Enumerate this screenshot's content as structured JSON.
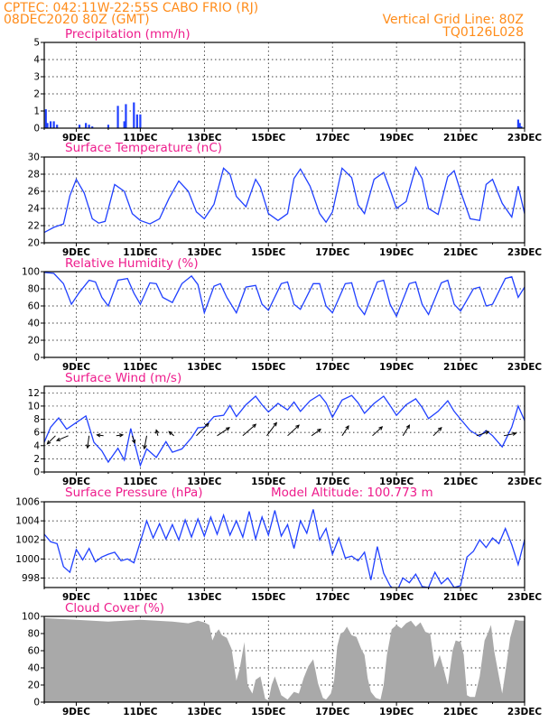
{
  "header": {
    "station": "CPTEC:   042:11W-22:55S   CABO FRIO (RJ)",
    "run": "08DEC2020 80Z (GMT)",
    "grid_note": "Vertical Grid Line: 80Z",
    "code": "TQ0126L028"
  },
  "x_axis": {
    "start_day": 8.0,
    "end_day": 23.0,
    "tick_days": [
      9,
      11,
      13,
      15,
      17,
      19,
      21,
      23
    ],
    "tick_labels": [
      "9DEC",
      "11DEC",
      "13DEC",
      "15DEC",
      "17DEC",
      "19DEC",
      "21DEC",
      "23DEC"
    ]
  },
  "colors": {
    "line": "#2040ff",
    "cloud": "#a9a9a9",
    "header": "#ff8c1a",
    "title": "#ee1c8c",
    "grid": "#000000"
  },
  "chart_data": [
    {
      "id": "precip",
      "type": "bar",
      "title": "Precipitation (mm/h)",
      "ylim": [
        0,
        5
      ],
      "yticks": [
        0,
        1,
        2,
        3,
        4,
        5
      ],
      "x_unit": "day of December 2020",
      "x": [
        8.05,
        8.1,
        8.2,
        8.3,
        8.4,
        9.1,
        9.3,
        9.4,
        9.5,
        10.0,
        10.3,
        10.5,
        10.55,
        10.8,
        10.9,
        11.0,
        22.8,
        22.85,
        22.9
      ],
      "values": [
        1.1,
        0.3,
        0.4,
        0.4,
        0.2,
        0.2,
        0.3,
        0.2,
        0.1,
        0.2,
        1.3,
        0.4,
        1.4,
        1.5,
        0.8,
        0.8,
        0.5,
        0.3,
        0.1
      ],
      "grid": true
    },
    {
      "id": "temp",
      "type": "line",
      "title": "Surface Temperature (nC)",
      "ylim": [
        20,
        30
      ],
      "yticks": [
        20,
        22,
        24,
        26,
        28,
        30
      ],
      "x": [
        8.0,
        8.3,
        8.6,
        8.8,
        9.0,
        9.25,
        9.5,
        9.7,
        9.9,
        10.2,
        10.5,
        10.75,
        11.0,
        11.3,
        11.6,
        11.9,
        12.2,
        12.5,
        12.75,
        13.0,
        13.3,
        13.6,
        13.8,
        14.0,
        14.3,
        14.6,
        14.75,
        15.0,
        15.3,
        15.6,
        15.8,
        16.0,
        16.3,
        16.6,
        16.8,
        17.0,
        17.3,
        17.6,
        17.8,
        18.0,
        18.3,
        18.6,
        18.8,
        19.0,
        19.3,
        19.6,
        19.8,
        20.0,
        20.3,
        20.6,
        20.8,
        21.0,
        21.3,
        21.6,
        21.8,
        22.0,
        22.3,
        22.6,
        22.8,
        23.0
      ],
      "values": [
        21.2,
        21.8,
        22.2,
        25.5,
        27.4,
        25.8,
        22.8,
        22.3,
        22.5,
        26.8,
        26.0,
        23.4,
        22.6,
        22.2,
        22.8,
        25.2,
        27.2,
        26.0,
        23.6,
        22.8,
        24.5,
        28.7,
        28.0,
        25.4,
        24.2,
        27.4,
        26.5,
        23.4,
        22.6,
        23.4,
        27.5,
        28.6,
        26.6,
        23.4,
        22.4,
        23.6,
        28.7,
        27.6,
        24.4,
        23.4,
        27.4,
        28.2,
        26.2,
        24.0,
        24.8,
        28.8,
        27.5,
        24.0,
        23.3,
        27.7,
        28.4,
        26.0,
        22.8,
        22.6,
        26.8,
        27.4,
        24.6,
        23.0,
        26.6,
        23.4
      ],
      "grid": true
    },
    {
      "id": "rh",
      "type": "line",
      "title": "Relative Humidity (%)",
      "ylim": [
        0,
        100
      ],
      "yticks": [
        0,
        20,
        40,
        60,
        80,
        100
      ],
      "x": [
        8.0,
        8.3,
        8.6,
        8.85,
        9.1,
        9.4,
        9.6,
        9.8,
        10.0,
        10.3,
        10.6,
        10.8,
        11.0,
        11.3,
        11.5,
        11.7,
        12.0,
        12.3,
        12.6,
        12.8,
        13.0,
        13.3,
        13.5,
        13.7,
        14.0,
        14.3,
        14.6,
        14.8,
        15.0,
        15.4,
        15.6,
        15.8,
        16.0,
        16.4,
        16.6,
        16.8,
        17.0,
        17.4,
        17.6,
        17.8,
        18.0,
        18.4,
        18.6,
        18.8,
        19.0,
        19.4,
        19.6,
        19.8,
        20.0,
        20.4,
        20.6,
        20.8,
        21.0,
        21.4,
        21.6,
        21.8,
        22.0,
        22.4,
        22.6,
        22.8,
        23.0
      ],
      "values": [
        99,
        98,
        86,
        62,
        76,
        90,
        88,
        70,
        60,
        90,
        92,
        75,
        62,
        87,
        86,
        70,
        64,
        86,
        95,
        85,
        52,
        83,
        86,
        70,
        52,
        82,
        84,
        62,
        55,
        86,
        88,
        62,
        56,
        86,
        86,
        60,
        52,
        86,
        87,
        60,
        50,
        88,
        90,
        62,
        48,
        86,
        88,
        62,
        50,
        87,
        90,
        62,
        54,
        80,
        82,
        60,
        62,
        92,
        94,
        70,
        82
      ],
      "grid": true
    },
    {
      "id": "wind",
      "type": "line",
      "title": "Surface Wind (m/s)",
      "ylim": [
        0,
        13
      ],
      "yticks": [
        0,
        2,
        4,
        6,
        8,
        10,
        12
      ],
      "x": [
        8.0,
        8.2,
        8.45,
        8.7,
        9.0,
        9.3,
        9.55,
        9.8,
        10.0,
        10.3,
        10.5,
        10.7,
        11.0,
        11.2,
        11.5,
        11.8,
        12.0,
        12.3,
        12.6,
        12.8,
        13.0,
        13.3,
        13.6,
        13.8,
        14.0,
        14.3,
        14.6,
        14.8,
        15.0,
        15.3,
        15.6,
        15.8,
        16.0,
        16.3,
        16.6,
        16.8,
        17.0,
        17.3,
        17.6,
        17.8,
        18.0,
        18.3,
        18.6,
        18.8,
        19.0,
        19.3,
        19.6,
        19.8,
        20.0,
        20.3,
        20.6,
        20.8,
        21.0,
        21.3,
        21.6,
        21.8,
        22.0,
        22.3,
        22.6,
        22.8,
        23.0
      ],
      "values": [
        4.5,
        6.8,
        8.2,
        6.5,
        7.5,
        8.5,
        4.5,
        3.2,
        1.5,
        3.6,
        1.8,
        6.6,
        1.0,
        3.5,
        2.2,
        4.6,
        3.0,
        3.5,
        5.2,
        6.7,
        6.8,
        8.4,
        8.6,
        10.1,
        8.4,
        10.2,
        11.5,
        10.2,
        9.1,
        10.4,
        9.4,
        10.6,
        9.2,
        10.8,
        11.7,
        10.5,
        8.3,
        10.9,
        11.6,
        10.5,
        8.9,
        10.4,
        11.5,
        10.1,
        8.6,
        10.2,
        11.1,
        9.8,
        8.1,
        9.2,
        10.8,
        9.2,
        8.0,
        6.3,
        5.4,
        6.3,
        5.5,
        3.8,
        6.8,
        10.0,
        7.8
      ],
      "vectors": [
        {
          "x": 8.35,
          "u": -1.0,
          "v": -1.0
        },
        {
          "x": 8.75,
          "u": -1.4,
          "v": -0.6
        },
        {
          "x": 9.4,
          "u": -0.2,
          "v": -1.5
        },
        {
          "x": 9.85,
          "u": -0.8,
          "v": 0.1
        },
        {
          "x": 10.25,
          "u": 0.8,
          "v": 0.1
        },
        {
          "x": 10.75,
          "u": 0.3,
          "v": -0.9
        },
        {
          "x": 11.2,
          "u": -0.3,
          "v": -1.6
        },
        {
          "x": 11.55,
          "u": -0.2,
          "v": 0.7
        },
        {
          "x": 12.05,
          "u": -0.6,
          "v": 0.5
        },
        {
          "x": 12.75,
          "u": 1.5,
          "v": 1.5
        },
        {
          "x": 13.4,
          "u": 1.5,
          "v": 1.0
        },
        {
          "x": 14.2,
          "u": 1.6,
          "v": 1.4
        },
        {
          "x": 14.95,
          "u": 1.2,
          "v": 1.6
        },
        {
          "x": 15.6,
          "u": 1.4,
          "v": 1.3
        },
        {
          "x": 16.35,
          "u": 1.1,
          "v": 0.8
        },
        {
          "x": 17.3,
          "u": 0.8,
          "v": 1.2
        },
        {
          "x": 18.25,
          "u": 1.2,
          "v": 1.1
        },
        {
          "x": 19.2,
          "u": 0.8,
          "v": 1.3
        },
        {
          "x": 20.15,
          "u": 1.0,
          "v": 1.0
        },
        {
          "x": 21.5,
          "u": 1.5,
          "v": 0.5
        },
        {
          "x": 22.35,
          "u": 1.5,
          "v": 0.3
        }
      ],
      "grid": true
    },
    {
      "id": "press",
      "type": "line",
      "title": "Surface Pressure (hPa)",
      "annotation": "Model Altitude: 100.773 m",
      "ylim": [
        997,
        1006
      ],
      "yticks": [
        998,
        1000,
        1002,
        1004,
        1006
      ],
      "x": [
        8.0,
        8.2,
        8.4,
        8.6,
        8.8,
        9.0,
        9.2,
        9.4,
        9.6,
        9.8,
        10.0,
        10.2,
        10.4,
        10.6,
        10.8,
        11.0,
        11.2,
        11.4,
        11.6,
        11.8,
        12.0,
        12.2,
        12.4,
        12.6,
        12.8,
        13.0,
        13.2,
        13.4,
        13.6,
        13.8,
        14.0,
        14.2,
        14.4,
        14.6,
        14.8,
        15.0,
        15.2,
        15.4,
        15.6,
        15.8,
        16.0,
        16.2,
        16.4,
        16.6,
        16.8,
        17.0,
        17.2,
        17.4,
        17.6,
        17.8,
        18.0,
        18.2,
        18.4,
        18.6,
        18.8,
        19.0,
        19.2,
        19.4,
        19.6,
        19.8,
        20.0,
        20.2,
        20.4,
        20.6,
        20.8,
        21.0,
        21.2,
        21.4,
        21.6,
        21.8,
        22.0,
        22.2,
        22.4,
        22.6,
        22.8,
        23.0
      ],
      "values": [
        1002.6,
        1001.8,
        1001.6,
        999.2,
        998.6,
        1001.0,
        999.9,
        1001.1,
        999.7,
        1000.2,
        1000.5,
        1000.7,
        999.8,
        1000.0,
        999.6,
        1001.8,
        1004.0,
        1002.2,
        1003.7,
        1002.1,
        1003.6,
        1002.0,
        1004.1,
        1002.3,
        1004.2,
        1002.4,
        1004.4,
        1002.6,
        1004.6,
        1002.5,
        1004.0,
        1002.3,
        1005.0,
        1002.1,
        1004.4,
        1002.5,
        1005.1,
        1002.4,
        1003.6,
        1001.1,
        1004.0,
        1002.7,
        1005.2,
        1002.0,
        1003.2,
        1000.5,
        1002.2,
        1000.1,
        1000.3,
        999.8,
        1000.7,
        997.8,
        1001.3,
        998.5,
        997.2,
        996.5,
        998.0,
        997.5,
        998.4,
        997.1,
        997.0,
        998.6,
        997.4,
        998.0,
        997.0,
        997.2,
        1000.2,
        1000.8,
        1002.0,
        1001.2,
        1002.2,
        1001.6,
        1003.2,
        1001.5,
        999.4,
        1002.0
      ],
      "grid": true
    },
    {
      "id": "cloud",
      "type": "area",
      "title": "Cloud Cover (%)",
      "ylim": [
        0,
        100
      ],
      "yticks": [
        0,
        20,
        40,
        60,
        80,
        100
      ],
      "x": [
        8.0,
        9.0,
        10.0,
        10.5,
        11.0,
        11.5,
        12.0,
        12.5,
        12.8,
        13.0,
        13.15,
        13.25,
        13.35,
        13.45,
        13.55,
        13.7,
        13.85,
        14.0,
        14.1,
        14.25,
        14.35,
        14.5,
        14.6,
        14.75,
        14.9,
        15.0,
        15.1,
        15.2,
        15.4,
        15.6,
        15.8,
        15.95,
        16.1,
        16.25,
        16.4,
        16.55,
        16.7,
        16.8,
        16.95,
        17.05,
        17.15,
        17.25,
        17.35,
        17.45,
        17.6,
        17.75,
        17.9,
        18.0,
        18.1,
        18.2,
        18.35,
        18.5,
        18.6,
        18.7,
        18.85,
        19.0,
        19.15,
        19.3,
        19.45,
        19.6,
        19.75,
        19.9,
        20.05,
        20.2,
        20.35,
        20.5,
        20.6,
        20.75,
        20.85,
        21.0,
        21.1,
        21.2,
        21.3,
        21.45,
        21.6,
        21.75,
        21.85,
        21.95,
        22.05,
        22.2,
        22.3,
        22.45,
        22.55,
        22.7,
        22.85,
        23.0
      ],
      "values": [
        98,
        96,
        94,
        95,
        96,
        95,
        94,
        92,
        95,
        93,
        90,
        72,
        80,
        85,
        78,
        75,
        62,
        25,
        38,
        70,
        20,
        10,
        26,
        30,
        4,
        2,
        20,
        30,
        8,
        3,
        12,
        10,
        28,
        42,
        50,
        22,
        5,
        3,
        10,
        25,
        65,
        80,
        82,
        88,
        78,
        76,
        62,
        55,
        28,
        12,
        5,
        3,
        20,
        55,
        85,
        90,
        86,
        92,
        95,
        88,
        93,
        82,
        80,
        40,
        55,
        35,
        20,
        60,
        72,
        70,
        55,
        8,
        6,
        6,
        30,
        72,
        80,
        90,
        60,
        30,
        10,
        48,
        75,
        96,
        95,
        95
      ],
      "grid": true
    }
  ]
}
